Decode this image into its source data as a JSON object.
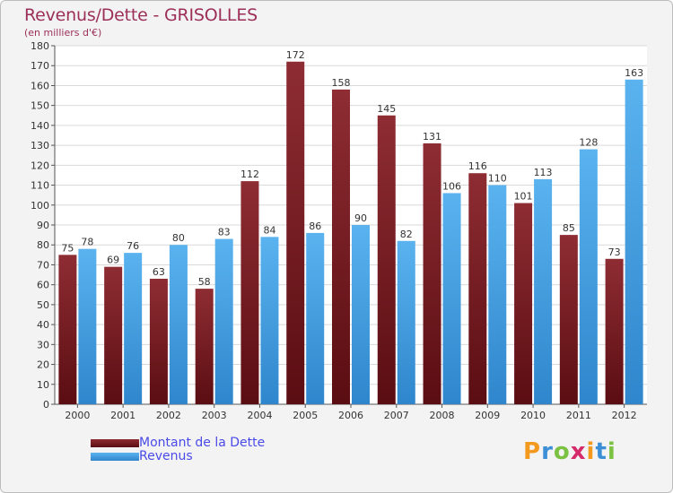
{
  "title": "Revenus/Dette - GRISOLLES",
  "subtitle": "(en milliers d'€)",
  "legend": {
    "dette_label": "Montant de la Dette",
    "revenus_label": "Revenus"
  },
  "logo": {
    "l1": "P",
    "l2": "r",
    "l3": "o",
    "l4": "x",
    "l5": "i",
    "l6": "t",
    "l7": "i"
  },
  "colors": {
    "dette": "#7a1c22",
    "revenus": "#4aa3e4",
    "title": "#9c2f58",
    "legend_text": "#4a4ae8"
  },
  "chart_data": {
    "type": "bar",
    "title": "Revenus/Dette - GRISOLLES",
    "ylabel": "(en milliers d'€)",
    "xlabel": "",
    "categories": [
      "2000",
      "2001",
      "2002",
      "2003",
      "2004",
      "2005",
      "2006",
      "2007",
      "2008",
      "2009",
      "2010",
      "2011",
      "2012"
    ],
    "series": [
      {
        "name": "Montant de la Dette",
        "values": [
          75,
          69,
          63,
          58,
          112,
          172,
          158,
          145,
          131,
          116,
          101,
          85,
          73
        ]
      },
      {
        "name": "Revenus",
        "values": [
          78,
          76,
          80,
          83,
          84,
          86,
          90,
          82,
          106,
          110,
          113,
          128,
          163
        ]
      }
    ],
    "ylim": [
      0,
      180
    ],
    "yticks": [
      0,
      10,
      20,
      30,
      40,
      50,
      60,
      70,
      80,
      90,
      100,
      110,
      120,
      130,
      140,
      150,
      160,
      170,
      180
    ],
    "grid": true,
    "legend_position": "bottom-left"
  }
}
